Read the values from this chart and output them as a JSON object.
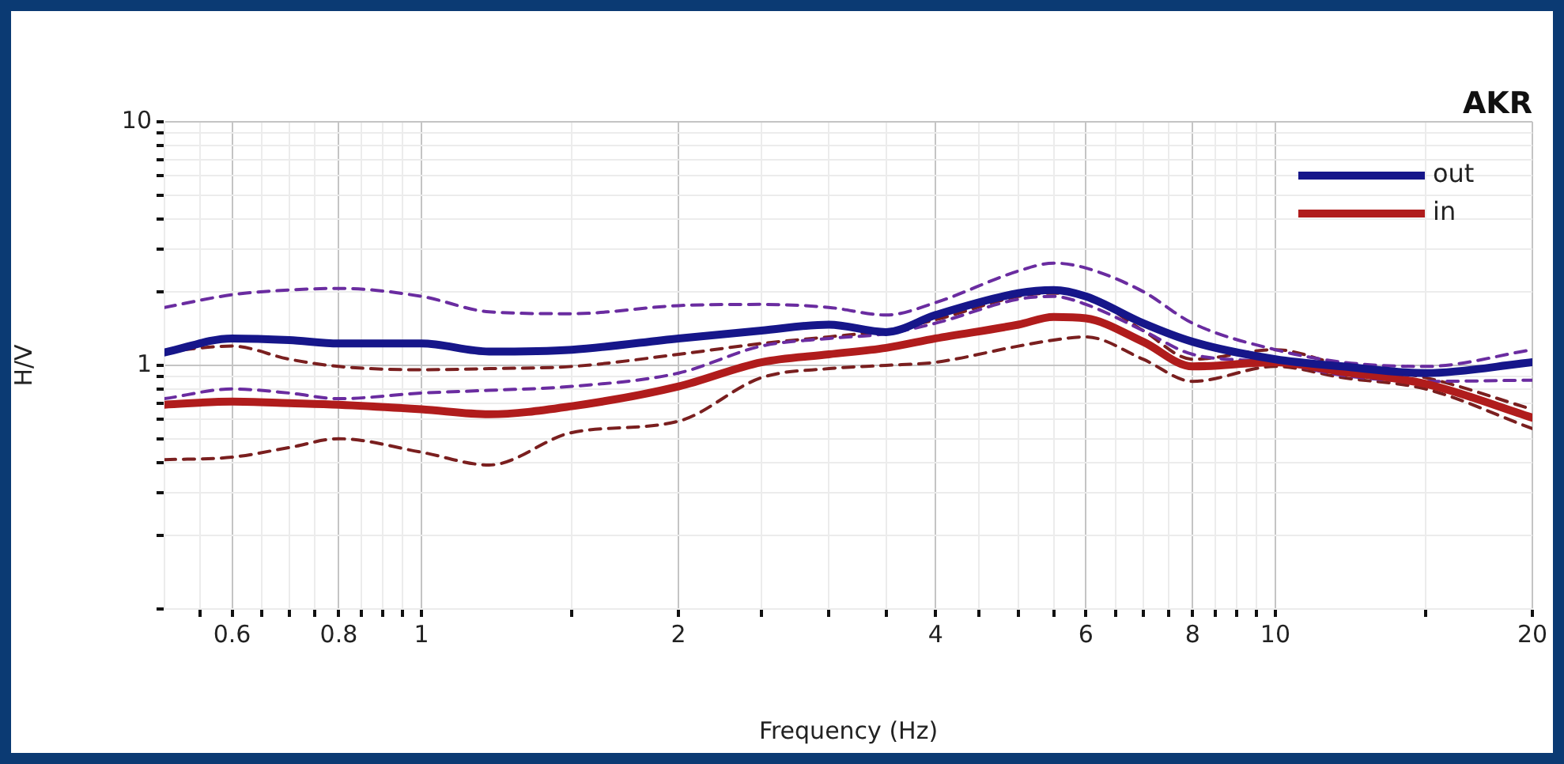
{
  "chart_data": {
    "type": "line",
    "title": "AKR",
    "xlabel": "Frequency (Hz)",
    "ylabel": "H/V",
    "log": "xy",
    "grid": true,
    "legend": "top right",
    "marker": "none",
    "xlim": [
      0.5,
      20
    ],
    "ylim": [
      0.1,
      10
    ],
    "xticks": [
      {
        "value": 0.55,
        "label": null
      },
      0.6,
      {
        "value": 0.65,
        "label": null
      },
      {
        "value": 0.7,
        "label": null
      },
      {
        "value": 0.75,
        "label": null
      },
      0.8,
      {
        "value": 0.85,
        "label": null
      },
      {
        "value": 0.9,
        "label": null
      },
      {
        "value": 0.95,
        "label": null
      },
      1,
      {
        "value": 1.5,
        "label": null
      },
      2,
      {
        "value": 2.5,
        "label": null
      },
      {
        "value": 3,
        "label": null
      },
      {
        "value": 3.5,
        "label": null
      },
      4,
      {
        "value": 4.5,
        "label": null
      },
      {
        "value": 5,
        "label": null
      },
      {
        "value": 5.5,
        "label": null
      },
      6,
      {
        "value": 6.5,
        "label": null
      },
      {
        "value": 7,
        "label": null
      },
      {
        "value": 7.5,
        "label": null
      },
      8,
      {
        "value": 8.5,
        "label": null
      },
      {
        "value": 9,
        "label": null
      },
      {
        "value": 9.5,
        "label": null
      },
      10,
      {
        "value": 15,
        "label": null
      },
      20
    ],
    "yticks": [
      {
        "value": 0.1,
        "label": null
      },
      {
        "value": 0.2,
        "label": null
      },
      {
        "value": 0.3,
        "label": null
      },
      {
        "value": 0.4,
        "label": null
      },
      {
        "value": 0.5,
        "label": null
      },
      {
        "value": 0.6,
        "label": null
      },
      {
        "value": 0.7,
        "label": null
      },
      {
        "value": 0.8,
        "label": null
      },
      {
        "value": 0.9,
        "label": null
      },
      1,
      {
        "value": 2,
        "label": null
      },
      {
        "value": 3,
        "label": null
      },
      {
        "value": 4,
        "label": null
      },
      {
        "value": 5,
        "label": null
      },
      {
        "value": 6,
        "label": null
      },
      {
        "value": 7,
        "label": null
      },
      {
        "value": 8,
        "label": null
      },
      {
        "value": 9,
        "label": null
      },
      10
    ],
    "x": [
      0.5,
      0.6,
      0.7,
      0.8,
      1,
      1.2,
      1.5,
      2,
      2.5,
      3,
      3.5,
      4,
      5,
      5.5,
      6,
      7,
      8,
      10,
      12,
      15,
      20
    ],
    "series": [
      {
        "color": "#6a2ca0",
        "line_style": "dashed",
        "values": [
          1.73,
          1.95,
          2.04,
          2.07,
          1.92,
          1.66,
          1.63,
          1.76,
          1.78,
          1.73,
          1.61,
          1.81,
          2.44,
          2.63,
          2.51,
          2.01,
          1.49,
          1.16,
          1.03,
          0.99,
          1.16
        ]
      },
      {
        "color": "#6a2ca0",
        "line_style": "dashed",
        "values": [
          0.73,
          0.8,
          0.77,
          0.73,
          0.77,
          0.79,
          0.82,
          0.93,
          1.2,
          1.29,
          1.35,
          1.49,
          1.87,
          1.92,
          1.78,
          1.39,
          1.11,
          1.03,
          0.91,
          0.86,
          0.87
        ]
      },
      {
        "color": "#7a1f1f",
        "line_style": "dashed",
        "values": [
          1.14,
          1.2,
          1.06,
          0.99,
          0.96,
          0.97,
          0.99,
          1.11,
          1.23,
          1.31,
          1.39,
          1.54,
          1.92,
          1.98,
          1.92,
          1.39,
          1.06,
          1.16,
          1.0,
          0.89,
          0.66
        ]
      },
      {
        "color": "#7a1f1f",
        "line_style": "dashed",
        "values": [
          0.41,
          0.42,
          0.46,
          0.5,
          0.44,
          0.39,
          0.53,
          0.59,
          0.89,
          0.97,
          1.0,
          1.03,
          1.2,
          1.27,
          1.31,
          1.06,
          0.86,
          0.99,
          0.89,
          0.8,
          0.55
        ]
      },
      {
        "name": "out",
        "color": "#16168a",
        "line_style": "solid",
        "values": [
          1.13,
          1.29,
          1.27,
          1.23,
          1.23,
          1.14,
          1.16,
          1.29,
          1.39,
          1.47,
          1.37,
          1.61,
          1.98,
          2.04,
          1.92,
          1.49,
          1.25,
          1.06,
          0.99,
          0.93,
          1.03
        ]
      },
      {
        "name": "in",
        "color": "#b01c1c",
        "line_style": "solid",
        "values": [
          0.69,
          0.71,
          0.7,
          0.69,
          0.66,
          0.63,
          0.68,
          0.82,
          1.03,
          1.11,
          1.18,
          1.29,
          1.47,
          1.58,
          1.56,
          1.25,
          0.99,
          1.03,
          0.94,
          0.84,
          0.61
        ]
      }
    ]
  }
}
